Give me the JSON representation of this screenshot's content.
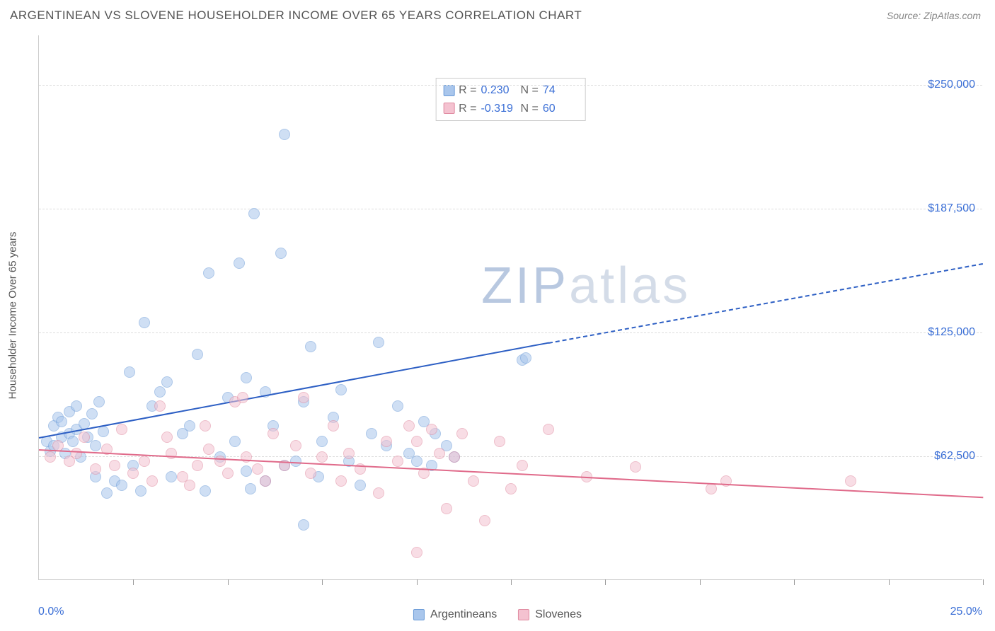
{
  "header": {
    "title": "ARGENTINEAN VS SLOVENE HOUSEHOLDER INCOME OVER 65 YEARS CORRELATION CHART",
    "source": "Source: ZipAtlas.com"
  },
  "chart": {
    "type": "scatter",
    "ylabel": "Householder Income Over 65 years",
    "xlim": [
      0,
      25
    ],
    "ylim": [
      0,
      275000
    ],
    "x_axis_label_left": "0.0%",
    "x_axis_label_right": "25.0%",
    "ytick_labels": [
      "$62,500",
      "$125,000",
      "$187,500",
      "$250,000"
    ],
    "ytick_values": [
      62500,
      125000,
      187500,
      250000
    ],
    "xtick_values": [
      2.5,
      5.0,
      7.5,
      10.0,
      12.5,
      15.0,
      17.5,
      20.0,
      22.5,
      25.0
    ],
    "grid_color": "#dddddd",
    "background_color": "#ffffff",
    "axis_color": "#cccccc",
    "label_fontsize": 15,
    "tick_label_color": "#3b6fd6",
    "watermark": "ZIPatlas",
    "series": [
      {
        "name": "Argentineans",
        "color_fill": "#a9c6ec",
        "color_stroke": "#6b9bd8",
        "marker_size": 16,
        "r_value": "0.230",
        "n_value": "74",
        "trend": {
          "x1": 0,
          "y1": 72000,
          "x2": 13.5,
          "y2": 120000,
          "color": "#2d5fc4"
        },
        "trend_ext": {
          "x1": 13.5,
          "y1": 120000,
          "x2": 25,
          "y2": 160000,
          "color": "#2d5fc4"
        },
        "points": [
          [
            0.2,
            70000
          ],
          [
            0.3,
            65000
          ],
          [
            0.4,
            78000
          ],
          [
            0.4,
            68000
          ],
          [
            0.5,
            82000
          ],
          [
            0.6,
            72000
          ],
          [
            0.6,
            80000
          ],
          [
            0.7,
            64000
          ],
          [
            0.8,
            74000
          ],
          [
            0.8,
            85000
          ],
          [
            0.9,
            70000
          ],
          [
            1.0,
            76000
          ],
          [
            1.0,
            88000
          ],
          [
            1.1,
            62000
          ],
          [
            1.2,
            79000
          ],
          [
            1.3,
            72000
          ],
          [
            1.4,
            84000
          ],
          [
            1.5,
            68000
          ],
          [
            1.6,
            90000
          ],
          [
            1.7,
            75000
          ],
          [
            1.5,
            52000
          ],
          [
            1.8,
            44000
          ],
          [
            2.0,
            50000
          ],
          [
            2.2,
            48000
          ],
          [
            2.4,
            105000
          ],
          [
            2.5,
            58000
          ],
          [
            2.7,
            45000
          ],
          [
            2.8,
            130000
          ],
          [
            3.0,
            88000
          ],
          [
            3.2,
            95000
          ],
          [
            3.4,
            100000
          ],
          [
            3.5,
            52000
          ],
          [
            3.8,
            74000
          ],
          [
            4.0,
            78000
          ],
          [
            4.2,
            114000
          ],
          [
            4.4,
            45000
          ],
          [
            4.5,
            155000
          ],
          [
            4.8,
            62000
          ],
          [
            5.0,
            92000
          ],
          [
            5.2,
            70000
          ],
          [
            5.3,
            160000
          ],
          [
            5.5,
            102000
          ],
          [
            5.5,
            55000
          ],
          [
            5.6,
            46000
          ],
          [
            5.7,
            185000
          ],
          [
            6.0,
            95000
          ],
          [
            6.0,
            50000
          ],
          [
            6.2,
            78000
          ],
          [
            6.4,
            165000
          ],
          [
            6.5,
            58000
          ],
          [
            6.8,
            60000
          ],
          [
            6.5,
            225000
          ],
          [
            7.0,
            90000
          ],
          [
            7.0,
            28000
          ],
          [
            7.2,
            118000
          ],
          [
            7.4,
            52000
          ],
          [
            7.5,
            70000
          ],
          [
            7.8,
            82000
          ],
          [
            8.0,
            96000
          ],
          [
            8.2,
            60000
          ],
          [
            8.5,
            48000
          ],
          [
            8.8,
            74000
          ],
          [
            9.0,
            120000
          ],
          [
            9.2,
            68000
          ],
          [
            9.5,
            88000
          ],
          [
            9.8,
            64000
          ],
          [
            10.0,
            60000
          ],
          [
            10.2,
            80000
          ],
          [
            10.4,
            58000
          ],
          [
            10.5,
            74000
          ],
          [
            10.8,
            68000
          ],
          [
            11.0,
            62000
          ],
          [
            12.8,
            111000
          ],
          [
            12.9,
            112000
          ]
        ]
      },
      {
        "name": "Slovenes",
        "color_fill": "#f4c2d0",
        "color_stroke": "#e08aa0",
        "marker_size": 16,
        "r_value": "-0.319",
        "n_value": "60",
        "trend": {
          "x1": 0,
          "y1": 66000,
          "x2": 25,
          "y2": 42000,
          "color": "#e06a8a"
        },
        "points": [
          [
            0.3,
            62000
          ],
          [
            0.5,
            68000
          ],
          [
            0.8,
            60000
          ],
          [
            1.0,
            64000
          ],
          [
            1.2,
            72000
          ],
          [
            1.5,
            56000
          ],
          [
            1.8,
            66000
          ],
          [
            2.0,
            58000
          ],
          [
            2.2,
            76000
          ],
          [
            2.5,
            54000
          ],
          [
            2.8,
            60000
          ],
          [
            3.0,
            50000
          ],
          [
            3.2,
            88000
          ],
          [
            3.4,
            72000
          ],
          [
            3.5,
            64000
          ],
          [
            3.8,
            52000
          ],
          [
            4.0,
            48000
          ],
          [
            4.2,
            58000
          ],
          [
            4.4,
            78000
          ],
          [
            4.5,
            66000
          ],
          [
            4.8,
            60000
          ],
          [
            5.0,
            54000
          ],
          [
            5.2,
            90000
          ],
          [
            5.4,
            92000
          ],
          [
            5.5,
            62000
          ],
          [
            5.8,
            56000
          ],
          [
            6.0,
            50000
          ],
          [
            6.2,
            74000
          ],
          [
            6.5,
            58000
          ],
          [
            6.8,
            68000
          ],
          [
            7.0,
            92000
          ],
          [
            7.2,
            54000
          ],
          [
            7.5,
            62000
          ],
          [
            7.8,
            78000
          ],
          [
            8.0,
            50000
          ],
          [
            8.2,
            64000
          ],
          [
            8.5,
            56000
          ],
          [
            9.0,
            44000
          ],
          [
            9.2,
            70000
          ],
          [
            9.5,
            60000
          ],
          [
            9.8,
            78000
          ],
          [
            10.0,
            70000
          ],
          [
            10.0,
            14000
          ],
          [
            10.2,
            54000
          ],
          [
            10.4,
            76000
          ],
          [
            10.6,
            64000
          ],
          [
            10.8,
            36000
          ],
          [
            11.0,
            62000
          ],
          [
            11.2,
            74000
          ],
          [
            11.5,
            50000
          ],
          [
            11.8,
            30000
          ],
          [
            12.2,
            70000
          ],
          [
            12.5,
            46000
          ],
          [
            12.8,
            58000
          ],
          [
            13.5,
            76000
          ],
          [
            14.5,
            52000
          ],
          [
            15.8,
            57000
          ],
          [
            17.8,
            46000
          ],
          [
            18.2,
            50000
          ],
          [
            21.5,
            50000
          ]
        ]
      }
    ],
    "stats_box": {
      "r_label": "R =",
      "n_label": "N ="
    },
    "legend_labels": [
      "Argentineans",
      "Slovenes"
    ]
  }
}
